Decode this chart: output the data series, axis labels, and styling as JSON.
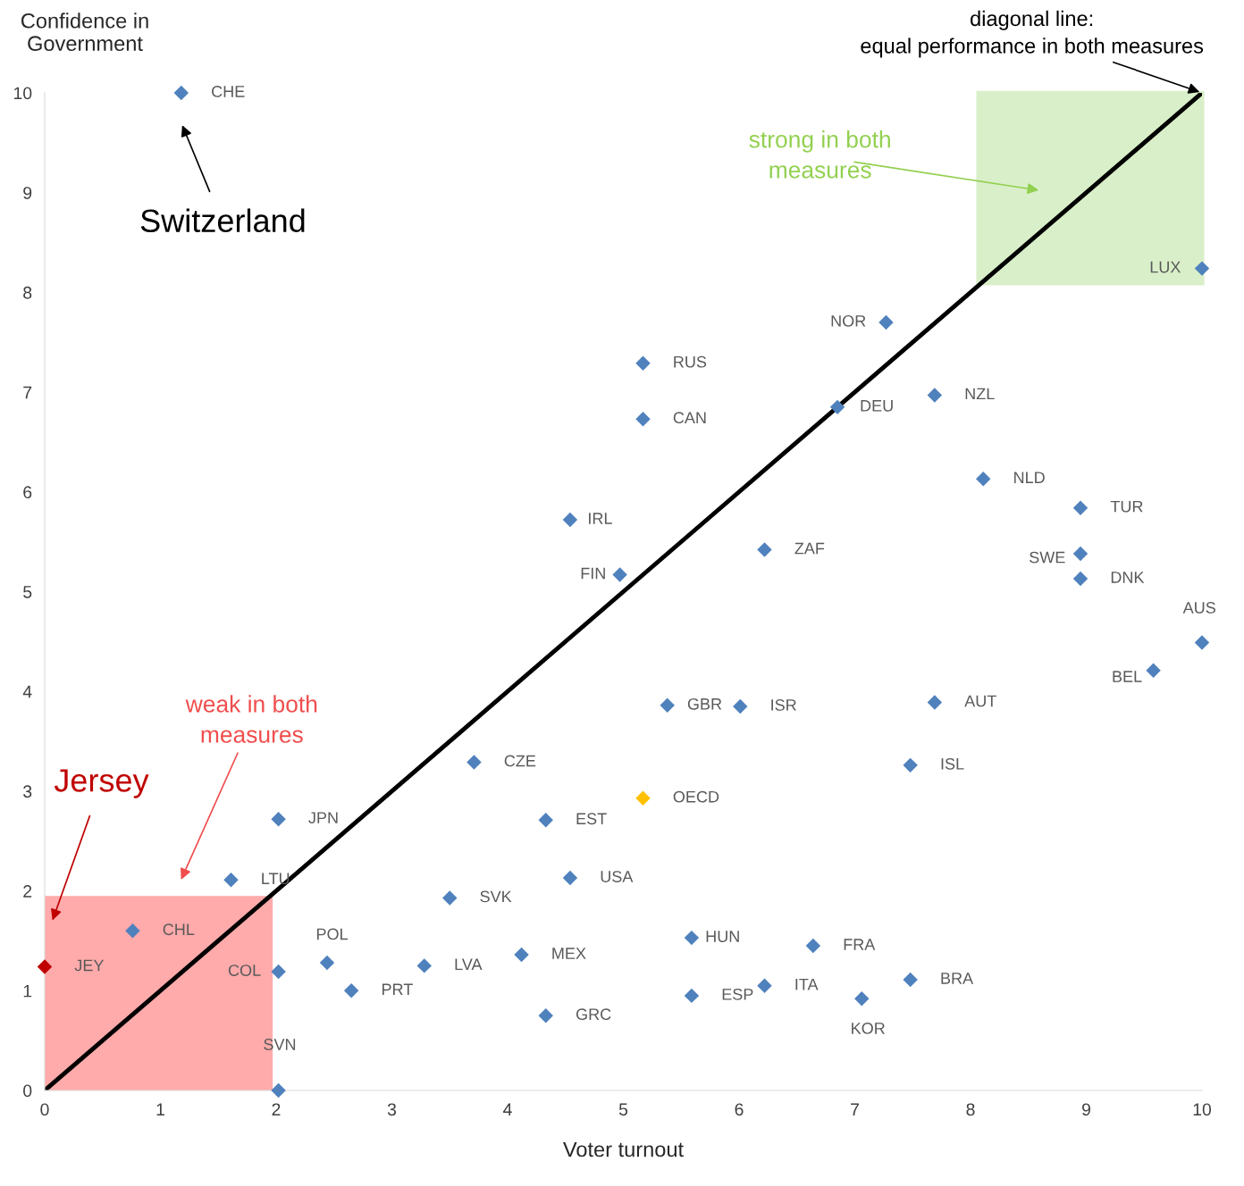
{
  "chart_data": {
    "type": "scatter",
    "xlabel": "Voter turnout",
    "ylabel": "Confidence in\nGovernment",
    "xlim": [
      0,
      10
    ],
    "ylim": [
      0,
      10
    ],
    "xticks": [
      0,
      1,
      2,
      3,
      4,
      5,
      6,
      7,
      8,
      9,
      10
    ],
    "yticks": [
      0,
      1,
      2,
      3,
      4,
      5,
      6,
      7,
      8,
      9,
      10
    ],
    "grid": false,
    "series": [
      {
        "type": "area",
        "x": [
          0,
          1.97
        ],
        "values": [
          1.95,
          1.95
        ],
        "color": "#ffaaab"
      },
      {
        "type": "line",
        "x": [
          0,
          10
        ],
        "values": [
          0,
          10
        ],
        "color": "#000000"
      },
      {
        "marker": "diamond",
        "x": [
          1.18,
          10,
          7.27,
          5.17,
          5.17,
          6.85,
          7.69,
          8.11,
          8.95,
          8.95,
          8.95,
          4.54,
          4.97,
          6.22,
          10,
          9.58,
          5.38,
          6.01,
          7.69,
          3.71,
          7.48,
          5.17,
          2.02,
          4.33,
          4.54,
          1.61,
          3.5,
          0.76,
          5.59,
          6.64,
          4.12,
          2.44,
          3.28,
          0,
          2.02,
          7.48,
          2.65,
          5.59,
          6.22,
          7.06,
          4.33,
          2.02
        ],
        "values": [
          10,
          8.24,
          7.7,
          7.29,
          6.73,
          6.85,
          6.97,
          6.13,
          5.84,
          5.38,
          5.13,
          5.72,
          5.17,
          5.42,
          4.49,
          4.21,
          3.86,
          3.85,
          3.89,
          3.29,
          3.26,
          2.93,
          2.72,
          2.71,
          2.13,
          2.11,
          1.93,
          1.6,
          1.53,
          1.45,
          1.36,
          1.28,
          1.25,
          1.24,
          1.19,
          1.11,
          1.0,
          0.95,
          1.05,
          0.92,
          0.75,
          0
        ],
        "value_labels": [
          "CHE",
          "LUX",
          "NOR",
          "RUS",
          "CAN",
          "DEU",
          "NZL",
          "NLD",
          "TUR",
          "SWE",
          "DNK",
          "IRL",
          "FIN",
          "ZAF",
          "AUS",
          "BEL",
          "GBR",
          "ISR",
          "AUT",
          "CZE",
          "ISL",
          "OECD",
          "JPN",
          "EST",
          "USA",
          "LTU",
          "SVK",
          "CHL",
          "HUN",
          "FRA",
          "MEX",
          "POL",
          "LVA",
          "JEY",
          "COL",
          "BRA",
          "PRT",
          "ESP",
          "ITA",
          "KOR",
          "GRC",
          "SVN"
        ],
        "colors": [
          "#4f81bd",
          "#4f81bd",
          "#4f81bd",
          "#4f81bd",
          "#4f81bd",
          "#4f81bd",
          "#4f81bd",
          "#4f81bd",
          "#4f81bd",
          "#4f81bd",
          "#4f81bd",
          "#4f81bd",
          "#4f81bd",
          "#4f81bd",
          "#4f81bd",
          "#4f81bd",
          "#4f81bd",
          "#4f81bd",
          "#4f81bd",
          "#4f81bd",
          "#4f81bd",
          "#ffc000",
          "#4f81bd",
          "#4f81bd",
          "#4f81bd",
          "#4f81bd",
          "#4f81bd",
          "#4f81bd",
          "#4f81bd",
          "#4f81bd",
          "#4f81bd",
          "#4f81bd",
          "#4f81bd",
          "#c00000",
          "#4f81bd",
          "#4f81bd",
          "#4f81bd",
          "#4f81bd",
          "#4f81bd",
          "#4f81bd",
          "#4f81bd",
          "#4f81bd"
        ]
      }
    ],
    "annotations": [
      "Switzerland",
      "Jersey",
      "weak in both\nmeasures",
      "strong in both\nmeasures",
      {
        "text": "diagonal line:\nequal performance in both measures",
        "x": 10,
        "y": 10
      }
    ]
  }
}
